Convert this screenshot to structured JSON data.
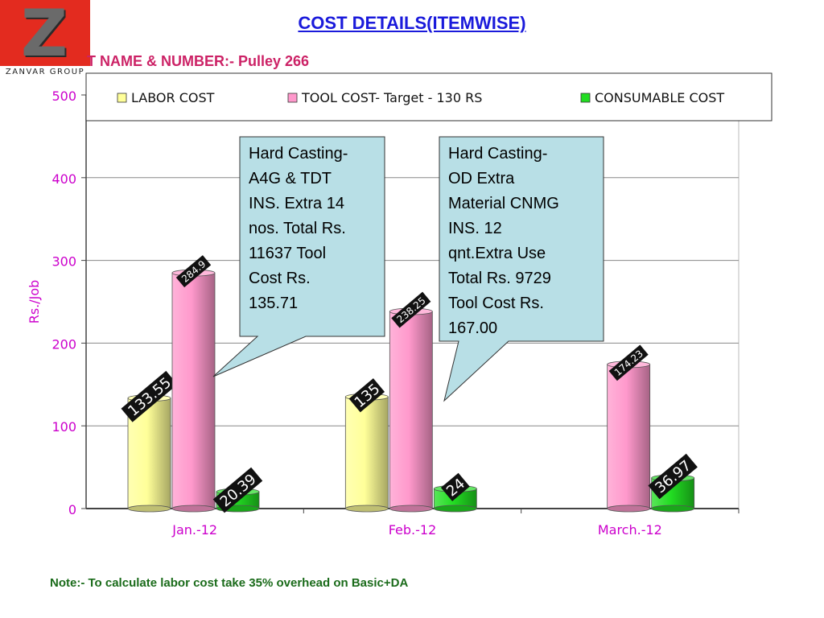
{
  "logo": {
    "letter": "Z",
    "text": "ZANVAR GROUP"
  },
  "header": {
    "title": "COST DETAILS(ITEMWISE)",
    "part_name": "T NAME & NUMBER:-  Pulley  266"
  },
  "callouts": [
    {
      "text": "Hard Casting-\nA4G & TDT\nINS. Extra 14\nnos. Total Rs.\n11637 Tool\nCost Rs.\n135.71"
    },
    {
      "text": "Hard Casting-\nOD Extra\nMaterial CNMG\nINS. 12\nqnt.Extra Use\nTotal Rs. 9729\nTool Cost Rs.\n167.00"
    }
  ],
  "note": "Note:- To calculate labor cost take 35% overhead on Basic+DA",
  "colors": {
    "labor": "#ffff99",
    "tool": "#ff99cc",
    "consumable": "#22dd22",
    "axis_text": "#cc00cc",
    "callout_fill": "#b8dfe6"
  },
  "chart_data": {
    "type": "bar",
    "categories": [
      "Jan.-12",
      "Feb.-12",
      "March.-12"
    ],
    "series": [
      {
        "name": "LABOR COST",
        "values": [
          133.55,
          135,
          null
        ],
        "labels": [
          "133.55",
          "135",
          ""
        ]
      },
      {
        "name": "TOOL COST- Target - 130 RS",
        "values": [
          284.9,
          238.25,
          174.23
        ],
        "labels": [
          "284.9",
          "238.25",
          "174.23"
        ]
      },
      {
        "name": "CONSUMABLE COST",
        "values": [
          20.39,
          24,
          36.97
        ],
        "labels": [
          "20.39",
          "24",
          "36.97"
        ]
      }
    ],
    "yticks": [
      "0",
      "100",
      "200",
      "300",
      "400",
      "500"
    ],
    "ylabel": "Rs./Job",
    "xlabel": "",
    "ylim": [
      0,
      500
    ],
    "grid": true,
    "legend": "top"
  }
}
